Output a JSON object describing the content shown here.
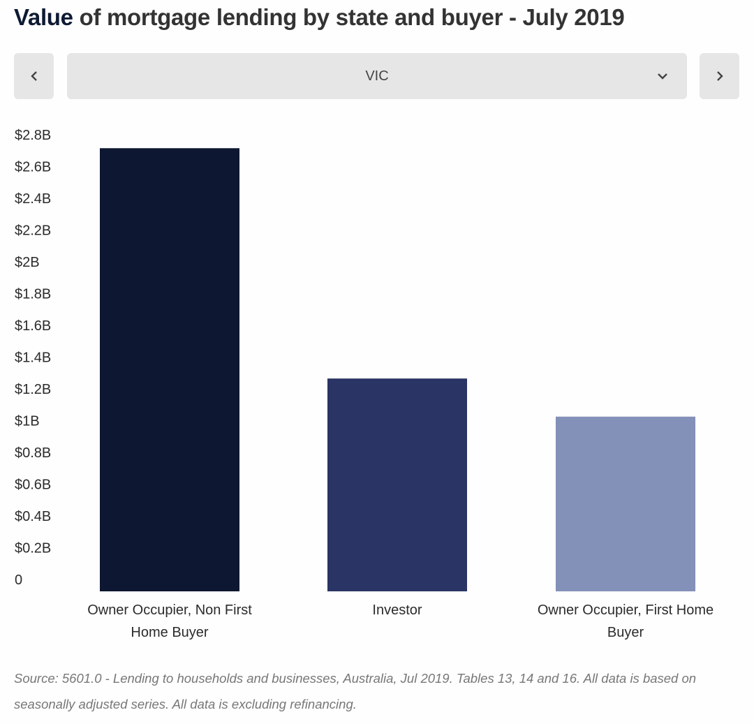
{
  "header": {
    "title_accent": "Value",
    "title_rest": " of mortgage lending by state and buyer - July 2019"
  },
  "selector": {
    "prev_icon": "chevron-left-icon",
    "next_icon": "chevron-right-icon",
    "dropdown_icon": "chevron-down-icon",
    "selected_value": "VIC"
  },
  "colors": {
    "accent": "#0e1a33",
    "control_bg": "#e6e6e7"
  },
  "chart_data": {
    "type": "bar",
    "title": "Value of mortgage lending by state and buyer - July 2019",
    "subtitle": "VIC",
    "xlabel": "",
    "ylabel": "",
    "categories": [
      [
        "Owner Occupier, Non First",
        "Home Buyer"
      ],
      [
        "Investor"
      ],
      [
        "Owner Occupier, First Home",
        "Buyer"
      ]
    ],
    "category_names": [
      "Owner Occupier, Non First Home Buyer",
      "Investor",
      "Owner Occupier, First Home Buyer"
    ],
    "values": [
      2.79,
      1.34,
      1.1
    ],
    "units": "billion AUD",
    "bar_colors": [
      "#0e1731",
      "#2a3565",
      "#8390b8"
    ],
    "ylim": [
      0,
      2.8
    ],
    "yticks": [
      0,
      0.2,
      0.4,
      0.6,
      0.8,
      1.0,
      1.2,
      1.4,
      1.6,
      1.8,
      2.0,
      2.2,
      2.4,
      2.6,
      2.8
    ],
    "ytick_labels": [
      "0",
      "$0.2B",
      "$0.4B",
      "$0.6B",
      "$0.8B",
      "$1B",
      "$1.2B",
      "$1.4B",
      "$1.6B",
      "$1.8B",
      "$2B",
      "$2.2B",
      "$2.4B",
      "$2.6B",
      "$2.8B"
    ],
    "grid": false,
    "legend": "none"
  },
  "footer": {
    "source": "Source:  5601.0 - Lending to households and businesses, Australia, Jul 2019. Tables 13, 14 and 16. All data is based on seasonally adjusted series. All data is excluding refinancing."
  }
}
